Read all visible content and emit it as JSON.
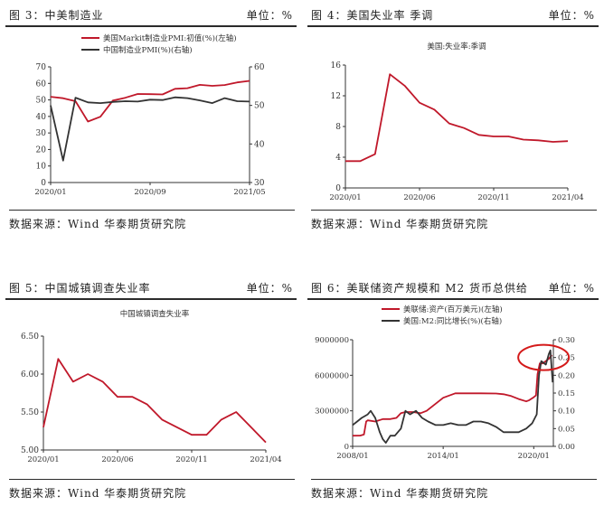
{
  "panels": [
    {
      "title": "图 3：中美制造业",
      "unit": "单位：%",
      "source": "数据来源：Wind  华泰期货研究院"
    },
    {
      "title": "图 4：美国失业率 季调",
      "unit": "单位：%",
      "source": "数据来源：Wind  华泰期货研究院"
    },
    {
      "title": "图 5：中国城镇调查失业率",
      "unit": "单位：%",
      "source": "数据来源：Wind  华泰期货研究院"
    },
    {
      "title": "图 6：美联储资产规模和 M2 货币总供给",
      "unit": "单位：%",
      "source": "数据来源：Wind  华泰期货研究院"
    }
  ],
  "chart_data": [
    {
      "type": "line",
      "title": "",
      "x": [
        "2020/01",
        "2020/02",
        "2020/03",
        "2020/04",
        "2020/05",
        "2020/06",
        "2020/07",
        "2020/08",
        "2020/09",
        "2020/10",
        "2020/11",
        "2020/12",
        "2021/01",
        "2021/02",
        "2021/03",
        "2021/04",
        "2021/05"
      ],
      "x_tick_labels": [
        "2020/01",
        "2020/09",
        "2021/05"
      ],
      "series": [
        {
          "name": "美国Markit制造业PMI:初值(%)(左轴)",
          "axis": "left",
          "color": "#c0182a",
          "values": [
            51.9,
            51.0,
            49.2,
            36.9,
            39.8,
            49.6,
            51.3,
            53.6,
            53.5,
            53.3,
            56.7,
            57.1,
            59.1,
            58.5,
            59.0,
            60.6,
            61.5
          ]
        },
        {
          "name": "中国制造业PMI(%)(右轴)",
          "axis": "right",
          "color": "#333333",
          "values": [
            50.0,
            35.7,
            52.0,
            50.8,
            50.6,
            50.9,
            51.1,
            51.0,
            51.5,
            51.4,
            52.1,
            51.9,
            51.3,
            50.6,
            51.9,
            51.1,
            51.0
          ]
        }
      ],
      "ylim_left": [
        0,
        70
      ],
      "yticks_left": [
        0,
        10,
        20,
        30,
        40,
        50,
        60,
        70
      ],
      "ylim_right": [
        30,
        60
      ],
      "yticks_right": [
        30,
        40,
        50,
        60
      ],
      "legend": "top-left"
    },
    {
      "type": "line",
      "title": "美国:失业率:季调",
      "x": [
        "2020/01",
        "2020/02",
        "2020/03",
        "2020/04",
        "2020/05",
        "2020/06",
        "2020/07",
        "2020/08",
        "2020/09",
        "2020/10",
        "2020/11",
        "2020/12",
        "2021/01",
        "2021/02",
        "2021/03",
        "2021/04"
      ],
      "x_tick_labels": [
        "2020/01",
        "2020/06",
        "2020/11",
        "2021/04"
      ],
      "series": [
        {
          "name": "美国:失业率:季调",
          "color": "#c0182a",
          "values": [
            3.5,
            3.5,
            4.4,
            14.8,
            13.3,
            11.1,
            10.2,
            8.4,
            7.8,
            6.9,
            6.7,
            6.7,
            6.3,
            6.2,
            6.0,
            6.1
          ]
        }
      ],
      "ylim": [
        0,
        16
      ],
      "yticks": [
        0,
        4,
        8,
        12,
        16
      ]
    },
    {
      "type": "line",
      "title": "中国城镇调查失业率",
      "x": [
        "2020/01",
        "2020/02",
        "2020/03",
        "2020/04",
        "2020/05",
        "2020/06",
        "2020/07",
        "2020/08",
        "2020/09",
        "2020/10",
        "2020/11",
        "2020/12",
        "2021/01",
        "2021/02",
        "2021/03",
        "2021/04"
      ],
      "x_tick_labels": [
        "2020/01",
        "2020/06",
        "2020/11",
        "2021/04"
      ],
      "series": [
        {
          "name": "中国城镇调查失业率",
          "color": "#c0182a",
          "values": [
            5.3,
            6.2,
            5.9,
            6.0,
            5.9,
            5.7,
            5.7,
            5.6,
            5.4,
            5.3,
            5.2,
            5.2,
            5.4,
            5.5,
            5.3,
            5.1
          ]
        }
      ],
      "ylim": [
        5.0,
        6.5
      ],
      "yticks": [
        5.0,
        5.5,
        6.0,
        6.5
      ],
      "ytick_format": "2dp"
    },
    {
      "type": "line",
      "title": "",
      "x_range": [
        2008.0,
        2021.3
      ],
      "x_tick_labels": [
        "2008/01",
        "2014/01",
        "2020/01"
      ],
      "x_tick_values": [
        2008.0,
        2014.0,
        2020.0
      ],
      "series": [
        {
          "name": "美联储:资产(百万美元)(左轴)",
          "axis": "left",
          "color": "#c0182a",
          "x": [
            2008.0,
            2008.5,
            2008.75,
            2008.9,
            2009.0,
            2009.5,
            2010.0,
            2010.5,
            2010.9,
            2011.2,
            2011.5,
            2012.0,
            2012.5,
            2012.9,
            2013.5,
            2014.0,
            2014.8,
            2015.5,
            2016.5,
            2017.5,
            2018.0,
            2018.5,
            2019.0,
            2019.5,
            2019.7,
            2020.0,
            2020.15,
            2020.25,
            2020.4,
            2020.6,
            2021.0,
            2021.2
          ],
          "values": [
            900000,
            910000,
            1000000,
            2100000,
            2200000,
            2100000,
            2300000,
            2300000,
            2400000,
            2800000,
            2900000,
            2900000,
            2800000,
            3000000,
            3600000,
            4100000,
            4480000,
            4480000,
            4480000,
            4460000,
            4400000,
            4250000,
            4000000,
            3800000,
            3900000,
            4150000,
            4300000,
            6100000,
            7000000,
            7000000,
            7400000,
            7700000
          ]
        },
        {
          "name": "美国:M2:同比增长(%)(右轴)",
          "axis": "right",
          "color": "#333333",
          "x": [
            2008.0,
            2008.3,
            2008.6,
            2009.0,
            2009.2,
            2009.5,
            2009.8,
            2010.0,
            2010.2,
            2010.5,
            2010.8,
            2011.2,
            2011.5,
            2011.8,
            2012.2,
            2012.6,
            2013.0,
            2013.5,
            2014.0,
            2014.5,
            2015.0,
            2015.5,
            2016.0,
            2016.5,
            2017.0,
            2017.5,
            2018.0,
            2018.5,
            2019.0,
            2019.5,
            2019.9,
            2020.2,
            2020.35,
            2020.5,
            2020.8,
            2021.0,
            2021.1,
            2021.25
          ],
          "values": [
            0.06,
            0.07,
            0.08,
            0.09,
            0.1,
            0.08,
            0.04,
            0.02,
            0.01,
            0.03,
            0.03,
            0.05,
            0.1,
            0.09,
            0.1,
            0.08,
            0.07,
            0.06,
            0.06,
            0.065,
            0.06,
            0.06,
            0.07,
            0.07,
            0.065,
            0.055,
            0.04,
            0.04,
            0.04,
            0.05,
            0.065,
            0.09,
            0.2,
            0.24,
            0.23,
            0.26,
            0.27,
            0.18
          ]
        }
      ],
      "ylim_left": [
        0,
        9000000
      ],
      "yticks_left": [
        0,
        3000000,
        6000000,
        9000000
      ],
      "ylim_right": [
        0,
        0.3
      ],
      "yticks_right": [
        0,
        0.05,
        0.1,
        0.15,
        0.2,
        0.25,
        0.3
      ],
      "annotation": "red-ellipse-highlight-2020-2021",
      "legend": "top-left"
    }
  ]
}
